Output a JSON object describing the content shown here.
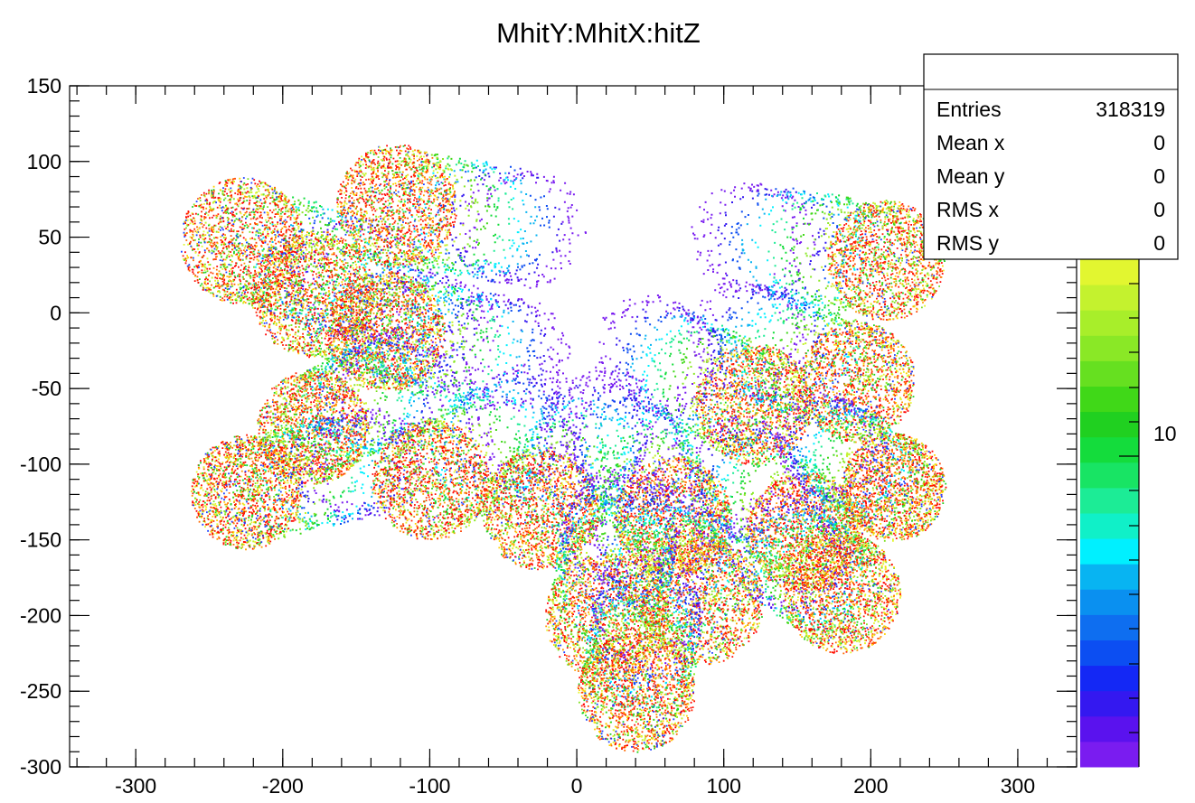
{
  "chart_data": {
    "type": "scatter",
    "title": "MhitY:MhitX:hitZ",
    "xlabel": "",
    "ylabel": "",
    "xlim": [
      -345,
      340
    ],
    "ylim": [
      -300,
      150
    ],
    "x_ticks": [
      "-300",
      "-200",
      "-100",
      "0",
      "100",
      "200",
      "300"
    ],
    "y_ticks": [
      "150",
      "100",
      "50",
      "0",
      "-50",
      "-100",
      "-150",
      "-200",
      "-250",
      "-300"
    ],
    "color_axis": {
      "label": "10",
      "palette": [
        "#7a1cf0",
        "#5a12ee",
        "#3418f0",
        "#1428f5",
        "#0c4ef2",
        "#0e6ef0",
        "#0a90f0",
        "#08b4f2",
        "#00f0ff",
        "#10f0c8",
        "#1cec96",
        "#18e464",
        "#14dc3c",
        "#20d020",
        "#40d818",
        "#66e020",
        "#8ae826",
        "#a8ee2a",
        "#c4f22e",
        "#e2f630"
      ]
    },
    "clusters": [
      {
        "x": -228,
        "y": 48,
        "r": 40,
        "dx": 88,
        "dy": -28
      },
      {
        "x": -180,
        "y": 13,
        "r": 40,
        "dx": 88,
        "dy": -28
      },
      {
        "x": -123,
        "y": 71,
        "r": 39,
        "dx": 90,
        "dy": -15
      },
      {
        "x": -130,
        "y": -12,
        "r": 38,
        "dx": 88,
        "dy": -15
      },
      {
        "x": -180,
        "y": -75,
        "r": 36,
        "dx": 58,
        "dy": 30
      },
      {
        "x": -225,
        "y": -118,
        "r": 36,
        "dx": 85,
        "dy": 20
      },
      {
        "x": -100,
        "y": -110,
        "r": 38,
        "dx": 70,
        "dy": 40
      },
      {
        "x": -25,
        "y": -130,
        "r": 38,
        "dx": 42,
        "dy": 58
      },
      {
        "x": 65,
        "y": -135,
        "r": 38,
        "dx": -38,
        "dy": 58
      },
      {
        "x": 120,
        "y": -60,
        "r": 38,
        "dx": -72,
        "dy": 35
      },
      {
        "x": 190,
        "y": -45,
        "r": 38,
        "dx": -78,
        "dy": 30
      },
      {
        "x": 210,
        "y": 35,
        "r": 38,
        "dx": -95,
        "dy": 15
      },
      {
        "x": 155,
        "y": -145,
        "r": 38,
        "dx": -45,
        "dy": 40
      },
      {
        "x": 215,
        "y": -115,
        "r": 34,
        "dx": -48,
        "dy": 30
      },
      {
        "x": 180,
        "y": -185,
        "r": 38,
        "dx": -42,
        "dy": 30
      },
      {
        "x": 85,
        "y": -190,
        "r": 40,
        "dx": -38,
        "dy": 40
      },
      {
        "x": 20,
        "y": -200,
        "r": 40,
        "dx": 10,
        "dy": 62
      },
      {
        "x": 40,
        "y": -250,
        "r": 38,
        "dx": 8,
        "dy": 58
      }
    ]
  },
  "stats": {
    "header": "",
    "rows": [
      {
        "label": "Entries",
        "value": "318319"
      },
      {
        "label": "Mean x",
        "value": "0"
      },
      {
        "label": "Mean y",
        "value": "0"
      },
      {
        "label": "RMS x",
        "value": "0"
      },
      {
        "label": "RMS y",
        "value": "0"
      }
    ]
  }
}
